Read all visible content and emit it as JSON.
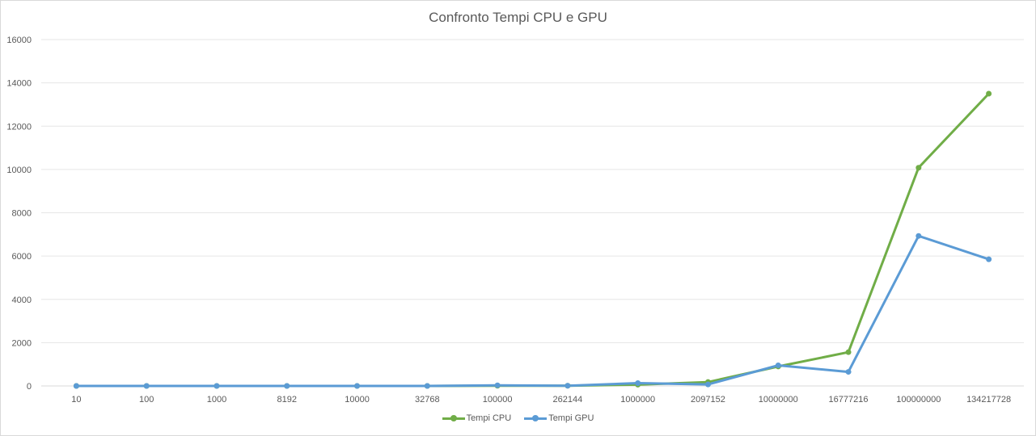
{
  "chart_data": {
    "type": "line",
    "title": "Confronto Tempi CPU e GPU",
    "categories": [
      "10",
      "100",
      "1000",
      "8192",
      "10000",
      "32768",
      "100000",
      "262144",
      "1000000",
      "2097152",
      "10000000",
      "16777216",
      "100000000",
      "134217728"
    ],
    "y_ticks": [
      "0",
      "2000",
      "4000",
      "6000",
      "8000",
      "10000",
      "12000",
      "14000",
      "16000"
    ],
    "ylim": [
      0,
      16000
    ],
    "grid": true,
    "legend_position": "bottom",
    "series": [
      {
        "name": "Tempi CPU",
        "color": "#70ad47",
        "values": [
          0,
          0,
          0,
          0,
          0,
          0,
          10,
          10,
          60,
          180,
          900,
          1560,
          10080,
          13500
        ]
      },
      {
        "name": "Tempi GPU",
        "color": "#5b9bd5",
        "values": [
          0,
          0,
          0,
          0,
          0,
          0,
          30,
          10,
          130,
          70,
          950,
          650,
          6930,
          5850
        ]
      }
    ]
  }
}
